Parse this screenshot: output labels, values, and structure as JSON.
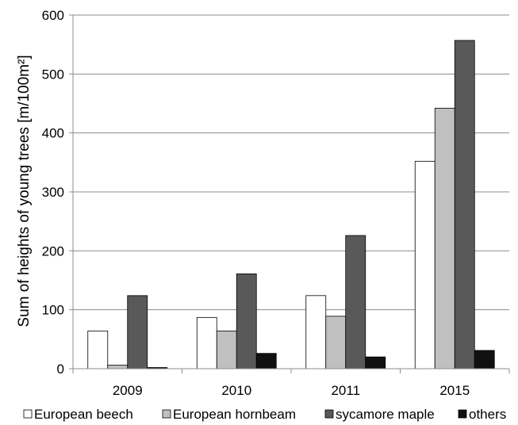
{
  "chart_data": {
    "type": "bar",
    "categories": [
      "2009",
      "2010",
      "2011",
      "2015"
    ],
    "series": [
      {
        "name": "European beech",
        "color": "#ffffff",
        "values": [
          64,
          87,
          124,
          352
        ]
      },
      {
        "name": "European hornbeam",
        "color": "#c0c0c0",
        "values": [
          6,
          64,
          89,
          442
        ]
      },
      {
        "name": "sycamore maple",
        "color": "#595959",
        "values": [
          124,
          161,
          226,
          557
        ]
      },
      {
        "name": "others",
        "color": "#111111",
        "values": [
          2,
          26,
          20,
          31
        ]
      }
    ],
    "ylabel": "Sum of heights of young trees  [m/100m²]",
    "ylim": [
      0,
      600
    ],
    "yticks": [
      0,
      100,
      200,
      300,
      400,
      500,
      600
    ],
    "grid": true,
    "legend_position": "bottom"
  }
}
